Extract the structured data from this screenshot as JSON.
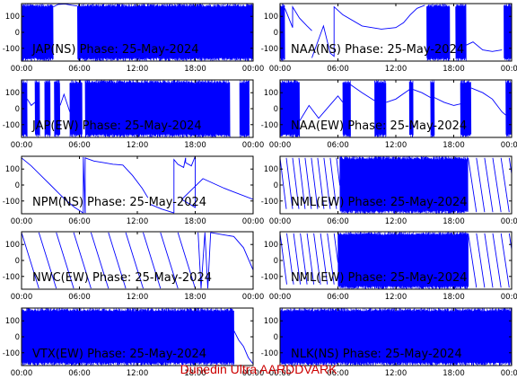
{
  "footer": "Dunedin Ultra AARDDVARK",
  "colors": {
    "trace": "#0000ff",
    "axes": "#000000",
    "footer": "#cc0000"
  },
  "chart_data": [
    {
      "type": "line",
      "title": "JAP(NS) Phase: 25-May-2024",
      "ylim": [
        -180,
        180
      ],
      "yticks": [
        100,
        0,
        -100
      ],
      "xticks": [
        "00:00",
        "06:00",
        "12:00",
        "18:00",
        "00:00"
      ],
      "xlim_hours": [
        0,
        24
      ],
      "series": [
        {
          "mode": "noise",
          "ranges": [
            [
              0,
              3.3
            ],
            [
              5.8,
              24
            ]
          ]
        },
        {
          "mode": "line",
          "x": [
            3.3,
            3.8,
            4.5,
            5.2,
            5.8
          ],
          "y": [
            160,
            175,
            178,
            170,
            165
          ]
        }
      ]
    },
    {
      "type": "line",
      "title": "NAA(NS) Phase: 25-May-2024",
      "ylim": [
        -180,
        180
      ],
      "yticks": [
        100,
        0,
        -100
      ],
      "xticks": [
        "00:00",
        "06:00",
        "12:00",
        "18:00",
        "00:00"
      ],
      "xlim_hours": [
        0,
        24
      ],
      "series": [
        {
          "mode": "noise",
          "ranges": [
            [
              0,
              0.5
            ],
            [
              15.2,
              17.6
            ],
            [
              18.2,
              19.3
            ],
            [
              23.2,
              24
            ]
          ]
        },
        {
          "mode": "line",
          "x": [
            0.5,
            1.3,
            1.3,
            2.0,
            2.8,
            3.3
          ],
          "y": [
            150,
            30,
            160,
            90,
            40,
            10
          ]
        },
        {
          "mode": "line",
          "x": [
            3.3,
            4.5,
            5.2,
            5.6,
            5.6,
            6.5,
            8.5,
            10.5,
            12.0,
            12.8,
            13.5,
            14.2,
            15.0
          ],
          "y": [
            -160,
            40,
            -130,
            -150,
            160,
            110,
            40,
            20,
            30,
            60,
            110,
            150,
            170
          ]
        },
        {
          "mode": "line",
          "x": [
            19.3,
            20.0,
            21.0,
            22.0,
            23.0
          ],
          "y": [
            -80,
            -60,
            -110,
            -120,
            -110
          ]
        }
      ]
    },
    {
      "type": "line",
      "title": "JAP(EW) Phase: 25-May-2024",
      "ylim": [
        -180,
        180
      ],
      "yticks": [
        100,
        0,
        -100
      ],
      "xticks": [
        "00:00",
        "06:00",
        "12:00",
        "18:00",
        "00:00"
      ],
      "xlim_hours": [
        0,
        24
      ],
      "series": [
        {
          "mode": "noise",
          "ranges": [
            [
              0,
              0.6
            ],
            [
              1.4,
              1.9
            ],
            [
              2.4,
              3.0
            ],
            [
              3.4,
              4.0
            ],
            [
              5.0,
              6.3
            ],
            [
              6.6,
              21.6
            ],
            [
              22.6,
              23.6
            ]
          ]
        },
        {
          "mode": "line",
          "x": [
            0.6,
            1.0,
            1.4
          ],
          "y": [
            60,
            20,
            40
          ]
        },
        {
          "mode": "line",
          "x": [
            4.0,
            4.4,
            5.0
          ],
          "y": [
            20,
            90,
            -20
          ]
        }
      ]
    },
    {
      "type": "line",
      "title": "NAA(EW) Phase: 25-May-2024",
      "ylim": [
        -180,
        180
      ],
      "yticks": [
        100,
        0,
        -100
      ],
      "xticks": [
        "00:00",
        "06:00",
        "12:00",
        "18:00",
        "00:00"
      ],
      "xlim_hours": [
        0,
        24
      ],
      "series": [
        {
          "mode": "noise",
          "ranges": [
            [
              0,
              2.0
            ],
            [
              6.5,
              7.3
            ],
            [
              9.8,
              11.0
            ],
            [
              13.4,
              13.8
            ],
            [
              15.6,
              16.0
            ],
            [
              18.7,
              19.8
            ],
            [
              23.4,
              24
            ]
          ]
        },
        {
          "mode": "line",
          "x": [
            2.0,
            3.0,
            4.0,
            5.0,
            6.0,
            6.5
          ],
          "y": [
            -80,
            20,
            -60,
            10,
            80,
            40
          ]
        },
        {
          "mode": "line",
          "x": [
            7.3,
            8.5,
            9.8
          ],
          "y": [
            150,
            100,
            50
          ]
        },
        {
          "mode": "line",
          "x": [
            11.0,
            12.0,
            13.4
          ],
          "y": [
            40,
            60,
            120
          ]
        },
        {
          "mode": "line",
          "x": [
            13.8,
            14.7,
            15.6
          ],
          "y": [
            120,
            100,
            70
          ]
        },
        {
          "mode": "line",
          "x": [
            16.0,
            17.0,
            18.0,
            18.7
          ],
          "y": [
            70,
            40,
            20,
            30
          ]
        },
        {
          "mode": "line",
          "x": [
            19.8,
            21.0,
            22.0,
            23.0,
            23.4
          ],
          "y": [
            130,
            100,
            60,
            -20,
            -40
          ]
        }
      ]
    },
    {
      "type": "line",
      "title": "NPM(NS) Phase: 25-May-2024",
      "ylim": [
        -180,
        180
      ],
      "yticks": [
        100,
        0,
        -100
      ],
      "xticks": [
        "00:00",
        "06:00",
        "12:00",
        "18:00",
        "00:00"
      ],
      "xlim_hours": [
        0,
        24
      ],
      "series": [
        {
          "mode": "line",
          "x": [
            0,
            1.0,
            2.0,
            3.0,
            4.0,
            4.5,
            5.5,
            6.4
          ],
          "y": [
            170,
            120,
            60,
            0,
            -60,
            -90,
            -140,
            -175
          ]
        },
        {
          "mode": "line",
          "x": [
            6.4,
            6.4,
            6.6
          ],
          "y": [
            -175,
            175,
            -175
          ]
        },
        {
          "mode": "line",
          "x": [
            6.6,
            6.6,
            7.5,
            8.5,
            9.5,
            10.5,
            11.5,
            12.5,
            13.1
          ],
          "y": [
            -175,
            170,
            150,
            140,
            130,
            125,
            60,
            -20,
            -80
          ]
        },
        {
          "mode": "line",
          "x": [
            13.3,
            14.5,
            15.8
          ],
          "y": [
            -120,
            -150,
            -175
          ]
        },
        {
          "mode": "line",
          "x": [
            15.8,
            15.8,
            16.2,
            16.8,
            17.0
          ],
          "y": [
            -175,
            160,
            130,
            110,
            170
          ]
        },
        {
          "mode": "line",
          "x": [
            17.0,
            17.0,
            17.6,
            18.0
          ],
          "y": [
            170,
            140,
            120,
            180
          ]
        },
        {
          "mode": "line",
          "x": [
            18.0,
            18.0,
            16.6,
            18.8,
            21.0,
            24
          ],
          "y": [
            180,
            -140,
            -90,
            40,
            -20,
            -90
          ]
        }
      ]
    },
    {
      "type": "line",
      "title": "NML(EW) Phase: 25-May-2024",
      "ylim": [
        -180,
        180
      ],
      "yticks": [
        100,
        0,
        -100
      ],
      "xticks": [
        "00:00",
        "06:00",
        "12:00",
        "18:00",
        "00:00"
      ],
      "xlim_hours": [
        0,
        24
      ],
      "series": [
        {
          "mode": "noise",
          "ranges": [
            [
              6.2,
              19.5
            ]
          ]
        },
        {
          "mode": "saw",
          "from": 0,
          "to": 6.2,
          "period": 0.65,
          "start": 170,
          "end": -150
        },
        {
          "mode": "saw",
          "from": 19.5,
          "to": 24,
          "period": 0.85,
          "start": 170,
          "end": -170
        }
      ]
    },
    {
      "type": "line",
      "title": "NWC(EW) Phase: 25-May-2024",
      "ylim": [
        -180,
        180
      ],
      "yticks": [
        100,
        0,
        -100
      ],
      "xticks": [
        "00:00",
        "06:00",
        "12:00",
        "18:00",
        "00:00"
      ],
      "xlim_hours": [
        0,
        24
      ],
      "series": [
        {
          "mode": "saw",
          "from": 0,
          "to": 18.0,
          "period": 1.8,
          "start": 175,
          "end": -175
        },
        {
          "mode": "line",
          "x": [
            18.3,
            18.6,
            19.0,
            19.3,
            19.6
          ],
          "y": [
            175,
            -175,
            175,
            -175,
            175
          ]
        },
        {
          "mode": "line",
          "x": [
            19.6,
            21.0,
            22.0,
            23.0,
            24
          ],
          "y": [
            175,
            160,
            150,
            80,
            -60
          ]
        }
      ]
    },
    {
      "type": "line",
      "title": "NML(EW) Phase: 25-May-2024",
      "ylim": [
        -180,
        180
      ],
      "yticks": [
        100,
        0,
        -100
      ],
      "xticks": [
        "00:00",
        "06:00",
        "12:00",
        "18:00",
        "00:00"
      ],
      "xlim_hours": [
        0,
        24
      ],
      "series": [
        {
          "mode": "noise",
          "ranges": [
            [
              6.0,
              19.5
            ]
          ]
        },
        {
          "mode": "saw",
          "from": 0,
          "to": 6.0,
          "period": 0.7,
          "start": 170,
          "end": -150
        },
        {
          "mode": "saw",
          "from": 19.5,
          "to": 24,
          "period": 0.85,
          "start": 170,
          "end": -170
        }
      ]
    },
    {
      "type": "line",
      "title": "VTX(EW) Phase: 25-May-2024",
      "ylim": [
        -180,
        180
      ],
      "yticks": [
        100,
        0,
        -100
      ],
      "xticks": [
        "00:00",
        "06:00",
        "12:00",
        "18:00",
        "00:00"
      ],
      "xlim_hours": [
        0,
        24
      ],
      "series": [
        {
          "mode": "noise",
          "ranges": [
            [
              0,
              22.0
            ]
          ]
        },
        {
          "mode": "line",
          "x": [
            22.0,
            22.5,
            23.0,
            23.5,
            24
          ],
          "y": [
            40,
            -20,
            -60,
            -130,
            -170
          ]
        }
      ]
    },
    {
      "type": "line",
      "title": "NLK(NS) Phase: 25-May-2024",
      "ylim": [
        -180,
        180
      ],
      "yticks": [
        100,
        0,
        -100
      ],
      "xticks": [
        "00:00",
        "06:00",
        "12:00",
        "18:00",
        "00:00"
      ],
      "xlim_hours": [
        0,
        24
      ],
      "series": [
        {
          "mode": "noise",
          "ranges": [
            [
              0,
              24
            ]
          ]
        }
      ]
    }
  ]
}
